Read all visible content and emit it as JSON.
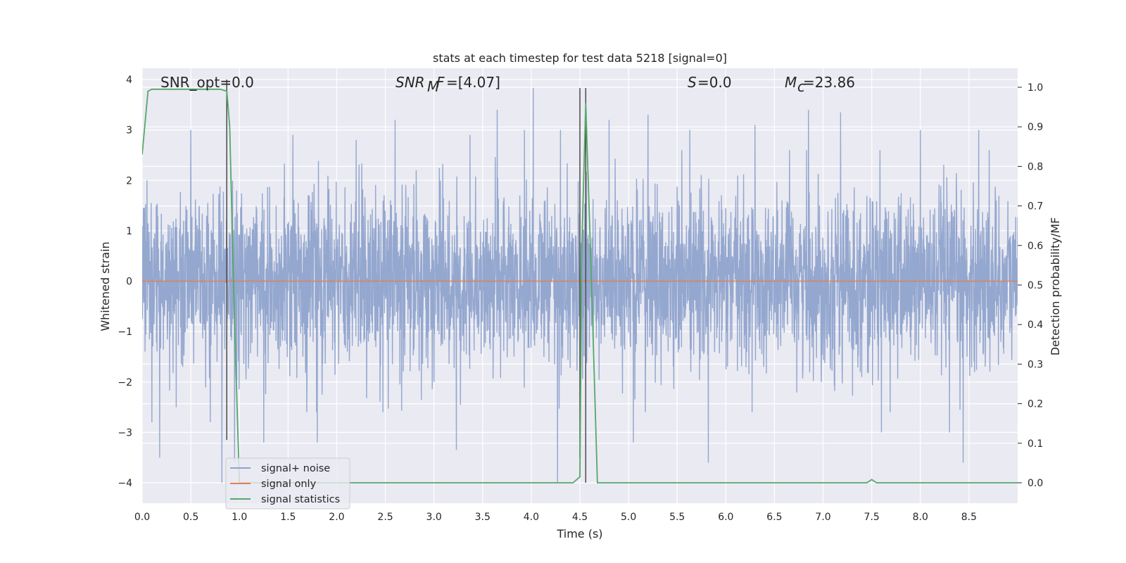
{
  "chart_data": {
    "type": "line",
    "title": "stats at each timestep for test data 5218 [signal=0]",
    "xlabel": "Time (s)",
    "ylabel": "Whitened strain",
    "ylabel_right": "Detection probability/MF",
    "xlim": [
      0,
      9
    ],
    "ylim": [
      -4.4,
      4.2
    ],
    "ylim_right": [
      -0.048,
      1.02
    ],
    "x_ticks": [
      "0.0",
      "0.5",
      "1.0",
      "1.5",
      "2.0",
      "2.5",
      "3.0",
      "3.5",
      "4.0",
      "4.5",
      "5.0",
      "5.5",
      "6.0",
      "6.5",
      "7.0",
      "7.5",
      "8.0",
      "8.5"
    ],
    "y_ticks": [
      "−4",
      "−3",
      "−2",
      "−1",
      "0",
      "1",
      "2",
      "3",
      "4"
    ],
    "y_ticks_right": [
      "0.0",
      "0.1",
      "0.2",
      "0.3",
      "0.4",
      "0.5",
      "0.6",
      "0.7",
      "0.8",
      "0.9",
      "1.0"
    ],
    "grid": true,
    "legend_position": "lower-left",
    "annotations": {
      "snr_opt": "SNR_opt=0.0",
      "snr_mf": "=[4.07]",
      "s_val": "=0.0",
      "mc": "=23.86"
    },
    "series": [
      {
        "name": "signal+ noise",
        "axis": "left",
        "color": "#8fa3cc",
        "kind": "noise",
        "sample_rate_hz": 400,
        "std": 0.85,
        "peak_values": [
          {
            "x": 0.05,
            "y": 2.0
          },
          {
            "x": 0.1,
            "y": -2.8
          },
          {
            "x": 0.18,
            "y": -3.5
          },
          {
            "x": 0.35,
            "y": -2.5
          },
          {
            "x": 0.5,
            "y": 3.0
          },
          {
            "x": 0.7,
            "y": -2.8
          },
          {
            "x": 0.82,
            "y": -4.0
          },
          {
            "x": 0.95,
            "y": -3.6
          },
          {
            "x": 1.25,
            "y": -3.2
          },
          {
            "x": 1.55,
            "y": 2.9
          },
          {
            "x": 1.8,
            "y": -3.2
          },
          {
            "x": 2.2,
            "y": 2.8
          },
          {
            "x": 2.6,
            "y": 3.2
          },
          {
            "x": 3.23,
            "y": -3.35
          },
          {
            "x": 3.37,
            "y": 2.9
          },
          {
            "x": 3.65,
            "y": 3.4
          },
          {
            "x": 3.93,
            "y": 3.0
          },
          {
            "x": 4.02,
            "y": 3.83
          },
          {
            "x": 4.27,
            "y": -4.0
          },
          {
            "x": 4.3,
            "y": 3.0
          },
          {
            "x": 4.8,
            "y": 3.2
          },
          {
            "x": 5.05,
            "y": -3.2
          },
          {
            "x": 5.2,
            "y": 3.3
          },
          {
            "x": 5.63,
            "y": 3.0
          },
          {
            "x": 5.82,
            "y": -3.6
          },
          {
            "x": 6.3,
            "y": 3.1
          },
          {
            "x": 6.85,
            "y": 3.4
          },
          {
            "x": 7.18,
            "y": 3.35
          },
          {
            "x": 7.6,
            "y": -3.0
          },
          {
            "x": 8.0,
            "y": 3.0
          },
          {
            "x": 8.3,
            "y": -3.0
          },
          {
            "x": 8.44,
            "y": -3.6
          },
          {
            "x": 8.6,
            "y": 3.0
          }
        ]
      },
      {
        "name": "signal only",
        "axis": "left",
        "color": "#dd8452",
        "x": [
          0,
          9
        ],
        "y": [
          0,
          0
        ]
      },
      {
        "name": "signal statistics",
        "axis": "right",
        "color": "#55a868",
        "x": [
          0,
          0.06,
          0.1,
          0.2,
          0.5,
          0.8,
          0.87,
          0.9,
          0.95,
          1.0,
          1.5,
          2.0,
          3.0,
          4.0,
          4.43,
          4.5,
          4.52,
          4.56,
          4.62,
          4.68,
          5.0,
          6.0,
          7.0,
          7.45,
          7.5,
          7.55,
          8.0,
          9.0
        ],
        "y": [
          0.83,
          0.99,
          0.995,
          0.995,
          0.995,
          0.995,
          0.99,
          0.9,
          0.4,
          0.0,
          0.0,
          0.0,
          0.0,
          0.0,
          0.0,
          0.015,
          0.6,
          0.96,
          0.5,
          0.0,
          0.0,
          0.0,
          0.0,
          0.0,
          0.008,
          0.0,
          0.0,
          0.0
        ]
      }
    ],
    "vertical_markers": [
      {
        "x": 0.87,
        "y_top": 4.0,
        "y_bottom": -3.15
      },
      {
        "x": 4.5,
        "y_top": 3.83,
        "y_bottom": -3.5
      },
      {
        "x": 4.56,
        "y_top": 3.83,
        "y_bottom": -4.0
      }
    ]
  }
}
